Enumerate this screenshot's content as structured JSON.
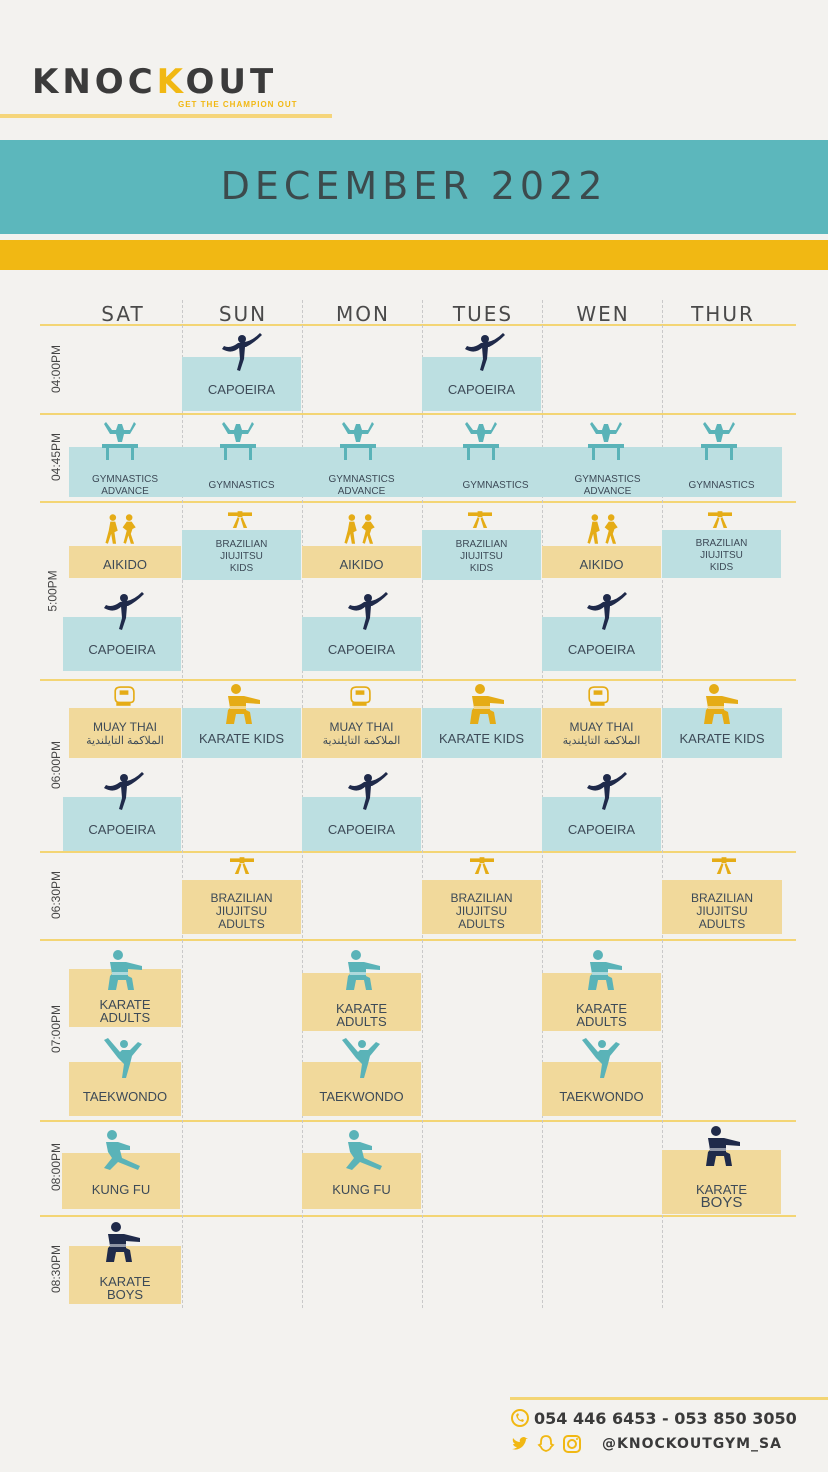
{
  "brand": {
    "name_part1": "KNOC",
    "name_part2": "K",
    "name_part3": "OUT",
    "tagline": "GET THE CHAMPION OUT"
  },
  "month_title": "DECEMBER  2022",
  "days": [
    "SAT",
    "SUN",
    "MON",
    "TUES",
    "WEN",
    "THUR"
  ],
  "times": [
    "04:00PM",
    "04:45PM",
    "5:00PM",
    "06:00PM",
    "06:30PM",
    "07:00PM",
    "08:00PM",
    "08:30PM"
  ],
  "labels": {
    "capoeira": "CAPOEIRA",
    "gym_adv_1": "GYMNASTICS",
    "gym_adv_2": "ADVANCE",
    "gymnastics": "GYMNASTICS",
    "aikido": "AIKIDO",
    "bjj_1": "BRAZILIAN",
    "bjj_2": "JIUJITSU",
    "bjj_kids": "KIDS",
    "bjj_adults": "ADULTS",
    "muay_thai": "MUAY THAI",
    "muay_thai_ar": "الملاكمة التايلندية",
    "karate_kids": "KARATE KIDS",
    "karate": "KARATE",
    "adults": "ADULTS",
    "boys": "BOYS",
    "taekwondo": "TAEKWONDO",
    "kung_fu": "KUNG FU"
  },
  "contact": {
    "phones": "054 446 6453 - 053 850 3050",
    "handle": "@KNOCKOUTGYM_SA"
  },
  "icons": [
    "capoeira-icon",
    "gymnastics-icon",
    "aikido-icon",
    "belt-icon",
    "glove-icon",
    "karate-icon",
    "taekwondo-icon",
    "kungfu-icon",
    "whatsapp-icon",
    "twitter-icon",
    "snapchat-icon",
    "instagram-icon"
  ],
  "colors": {
    "teal": "#5cb7bc",
    "gold": "#f1b813",
    "navy": "#1f2a4a",
    "teal_box": "#bcdfe1",
    "gold_box": "#f1d99b"
  }
}
